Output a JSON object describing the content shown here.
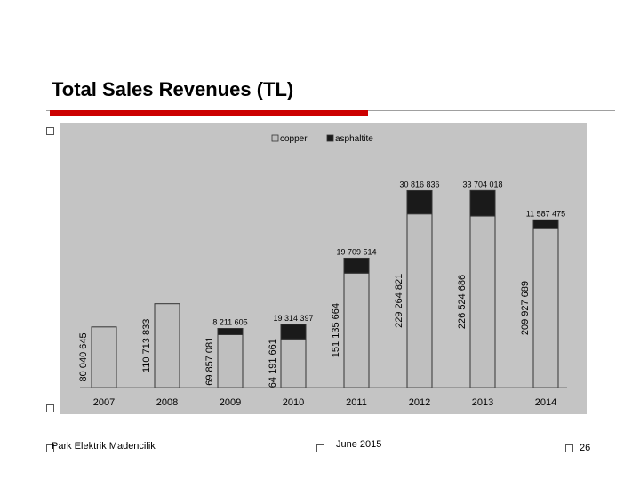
{
  "slide": {
    "title": "Total Sales Revenues (TL)",
    "footer_left": "Park Elektrik Madencilik",
    "footer_mid": "June 2015",
    "page_number": "26"
  },
  "colors": {
    "accent": "#cc0000",
    "copper": "#bfbfbf",
    "asphaltite": "#1a1a1a",
    "chart_bg": "#c4c4c4"
  },
  "chart_data": {
    "type": "bar",
    "stacked": true,
    "categories": [
      "2007",
      "2008",
      "2009",
      "2010",
      "2011",
      "2012",
      "2013",
      "2014"
    ],
    "series": [
      {
        "name": "copper",
        "values": [
          80040645,
          110713833,
          69857081,
          64191661,
          151135664,
          229264821,
          226524686,
          209927689
        ],
        "labels": [
          "80 040 645",
          "110 713 833",
          "69 857 081",
          "64 191 661",
          "151 135 664",
          "229 264 821",
          "226 524 686",
          "209 927 689"
        ]
      },
      {
        "name": "asphaltite",
        "values": [
          0,
          0,
          8211605,
          19314397,
          19709514,
          30816836,
          33704018,
          11587475
        ],
        "labels": [
          "",
          "",
          "8 211 605",
          "19 314 397",
          "19 709 514",
          "30 816 836",
          "33 704 018",
          "11 587 475"
        ]
      }
    ],
    "legend": [
      "copper",
      "asphaltite"
    ],
    "legend_position": "top",
    "ylim": [
      0,
      270000000
    ],
    "grid": false
  }
}
